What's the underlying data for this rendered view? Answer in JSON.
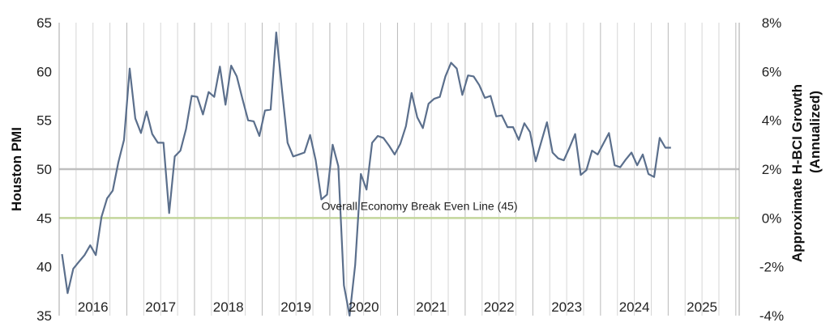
{
  "chart_data": {
    "type": "line",
    "ylabel_left": "Houston PMI",
    "ylabel_right": "Approximate H-BCI Growth",
    "ylabel_right_sub": "(Annualized)",
    "ylim_left": [
      35,
      65
    ],
    "ylim_right": [
      -4,
      8
    ],
    "left_ticks": [
      "35",
      "40",
      "45",
      "50",
      "55",
      "60",
      "65"
    ],
    "right_ticks": [
      "-4%",
      "-2%",
      "0%",
      "2%",
      "4%",
      "6%",
      "8%"
    ],
    "year_labels": [
      "2016",
      "2017",
      "2018",
      "2019",
      "2020",
      "2021",
      "2022",
      "2023",
      "2024",
      "2025"
    ],
    "grid": "vertical",
    "reference_lines": [
      {
        "value": 50,
        "color": "#bfbfbf"
      },
      {
        "value": 45,
        "color": "#c3d69b",
        "label": "Overall Economy Break Even Line (45)"
      }
    ],
    "series": [
      {
        "color": "#5b6f8c",
        "start": "2016-01",
        "values": [
          41.3,
          37.3,
          39.8,
          40.5,
          41.2,
          42.2,
          41.2,
          45.1,
          47.0,
          47.8,
          50.7,
          53.0,
          60.3,
          55.2,
          53.7,
          55.9,
          53.6,
          52.7,
          52.7,
          45.5,
          51.3,
          51.9,
          54.1,
          57.5,
          57.4,
          55.6,
          57.9,
          57.4,
          60.5,
          56.6,
          60.6,
          59.5,
          57.2,
          55.0,
          54.9,
          53.4,
          56.0,
          56.1,
          64.0,
          58.2,
          52.7,
          51.3,
          51.5,
          51.7,
          53.5,
          50.9,
          46.9,
          47.4,
          52.5,
          50.3,
          38.1,
          35.0,
          40.2,
          49.5,
          47.9,
          52.7,
          53.4,
          53.2,
          52.4,
          51.5,
          52.6,
          54.4,
          57.8,
          55.3,
          54.2,
          56.7,
          57.2,
          57.4,
          59.5,
          60.9,
          60.3,
          57.6,
          59.6,
          59.5,
          58.6,
          57.3,
          57.5,
          55.4,
          55.5,
          54.3,
          54.3,
          53.0,
          54.7,
          53.8,
          50.8,
          52.8,
          54.8,
          51.7,
          51.1,
          50.9,
          52.2,
          53.6,
          49.4,
          49.9,
          51.9,
          51.5,
          52.6,
          53.7,
          50.4,
          50.2,
          51.0,
          51.7,
          50.4,
          51.5,
          49.5,
          49.2,
          53.2,
          52.2,
          52.2
        ]
      }
    ]
  }
}
